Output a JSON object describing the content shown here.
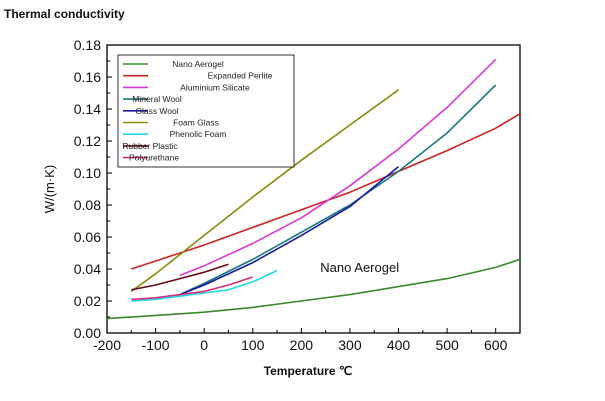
{
  "title": "Thermal conductivity",
  "chart_data": {
    "type": "line",
    "title": "Thermal conductivity",
    "xlabel": "Temperature ℃",
    "ylabel": "W/(m·K)",
    "xlim": [
      -200,
      650
    ],
    "ylim": [
      0.0,
      0.18
    ],
    "xticks": [
      -200,
      -100,
      0,
      100,
      200,
      300,
      400,
      500,
      600
    ],
    "xtick_labels": [
      "-200",
      "-100",
      "0",
      "100",
      "200",
      "300",
      "400",
      "500",
      "600"
    ],
    "yticks": [
      0.0,
      0.02,
      0.04,
      0.06,
      0.08,
      0.1,
      0.12,
      0.14,
      0.16,
      0.18
    ],
    "ytick_labels": [
      "0.00",
      "0.02",
      "0.04",
      "0.06",
      "0.08",
      "0.10",
      "0.12",
      "0.14",
      "0.16",
      "0.18"
    ],
    "grid": false,
    "legend_position": "top-left",
    "annotations": [
      {
        "text": "Nano Aerogel",
        "x": 320,
        "y": 0.038
      }
    ],
    "series": [
      {
        "name": "Nano Aerogel",
        "color": "#3a8a2a",
        "x": [
          -200,
          -100,
          0,
          100,
          200,
          300,
          400,
          500,
          600,
          650
        ],
        "y": [
          0.009,
          0.011,
          0.013,
          0.016,
          0.02,
          0.024,
          0.029,
          0.034,
          0.041,
          0.046
        ]
      },
      {
        "name": "Expanded Perlite",
        "color": "#cc2222",
        "x": [
          -150,
          -100,
          0,
          100,
          200,
          300,
          400,
          500,
          600,
          650
        ],
        "y": [
          0.04,
          0.045,
          0.055,
          0.066,
          0.077,
          0.088,
          0.101,
          0.114,
          0.128,
          0.137
        ]
      },
      {
        "name": "Aluminium Silicate",
        "color": "#d838d8",
        "x": [
          -50,
          0,
          100,
          200,
          300,
          400,
          500,
          600
        ],
        "y": [
          0.036,
          0.042,
          0.056,
          0.072,
          0.092,
          0.115,
          0.141,
          0.171
        ]
      },
      {
        "name": "Mineral Wool",
        "color": "#1a7a7a",
        "x": [
          -50,
          0,
          100,
          200,
          300,
          400,
          500,
          600
        ],
        "y": [
          0.024,
          0.031,
          0.046,
          0.063,
          0.08,
          0.101,
          0.125,
          0.155
        ]
      },
      {
        "name": "Glass Wool",
        "color": "#1a1aa8",
        "x": [
          -50,
          0,
          100,
          200,
          300,
          400
        ],
        "y": [
          0.024,
          0.03,
          0.044,
          0.061,
          0.079,
          0.104
        ]
      },
      {
        "name": "Foam Glass",
        "color": "#8a8a10",
        "x": [
          -150,
          -100,
          0,
          100,
          200,
          300,
          400
        ],
        "y": [
          0.026,
          0.037,
          0.061,
          0.085,
          0.108,
          0.13,
          0.152
        ]
      },
      {
        "name": "Phenolic Foam",
        "color": "#22d8e8",
        "x": [
          -150,
          -100,
          -50,
          0,
          50,
          100,
          150
        ],
        "y": [
          0.02,
          0.021,
          0.023,
          0.025,
          0.027,
          0.032,
          0.039
        ]
      },
      {
        "name": "Rubber Plastic",
        "color": "#6a0a16",
        "x": [
          -150,
          -100,
          -50,
          0,
          50
        ],
        "y": [
          0.027,
          0.03,
          0.034,
          0.038,
          0.043
        ]
      },
      {
        "name": "Polyurethane",
        "color": "#d0307a",
        "x": [
          -150,
          -100,
          -50,
          0,
          50,
          100
        ],
        "y": [
          0.021,
          0.022,
          0.024,
          0.026,
          0.03,
          0.035
        ]
      }
    ]
  }
}
